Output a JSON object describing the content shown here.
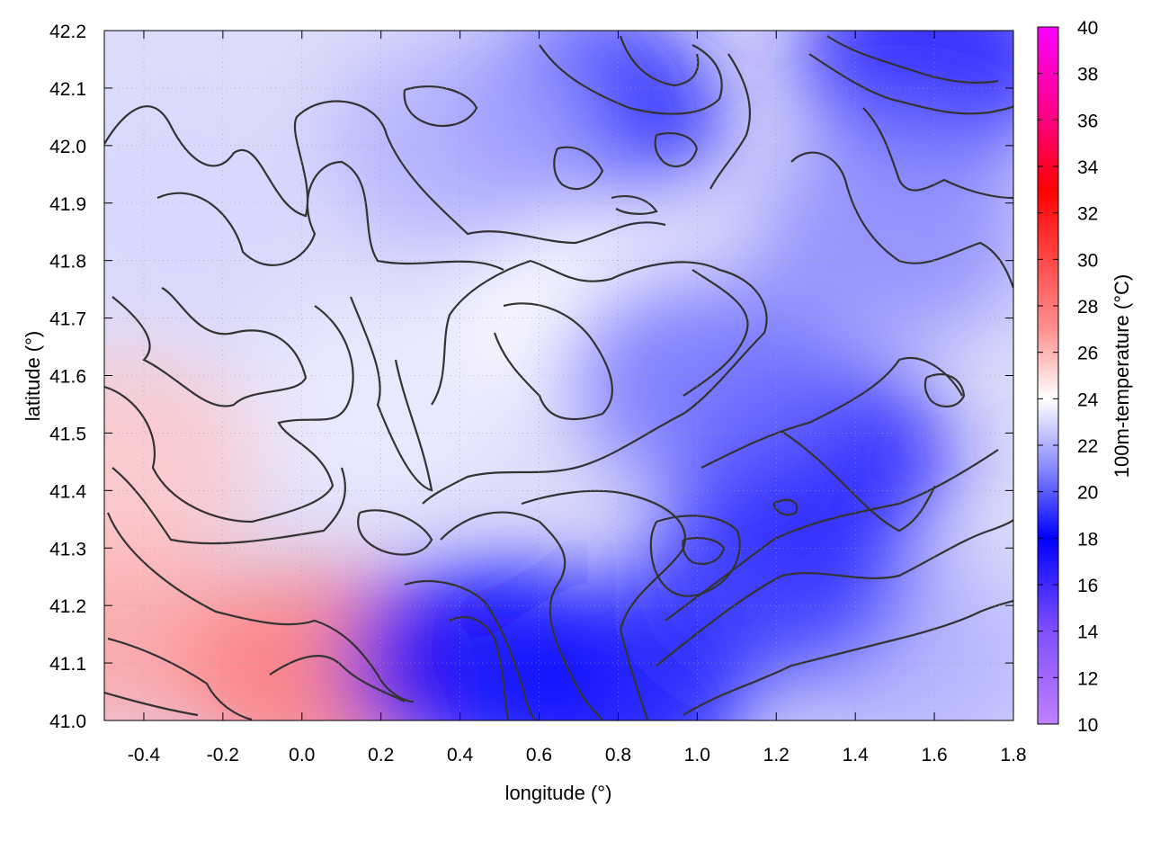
{
  "chart_data": {
    "type": "heatmap",
    "title": "",
    "xlabel": "longitude (°)",
    "ylabel": "latitude (°)",
    "colorbar_label": "100m-temperature (°C)",
    "xlim": [
      -0.5,
      1.8
    ],
    "ylim": [
      41.0,
      42.2
    ],
    "clim": [
      10,
      40
    ],
    "x_ticks": [
      "-0.4",
      "-0.2",
      "0.0",
      "0.2",
      "0.4",
      "0.6",
      "0.8",
      "1.0",
      "1.2",
      "1.4",
      "1.6",
      "1.8"
    ],
    "x_tick_values": [
      -0.4,
      -0.2,
      0.0,
      0.2,
      0.4,
      0.6,
      0.8,
      1.0,
      1.2,
      1.4,
      1.6,
      1.8
    ],
    "y_ticks": [
      "41.0",
      "41.1",
      "41.2",
      "41.3",
      "41.4",
      "41.5",
      "41.6",
      "41.7",
      "41.8",
      "41.9",
      "42.0",
      "42.1",
      "42.2"
    ],
    "y_tick_values": [
      41.0,
      41.1,
      41.2,
      41.3,
      41.4,
      41.5,
      41.6,
      41.7,
      41.8,
      41.9,
      42.0,
      42.1,
      42.2
    ],
    "colorbar_ticks": [
      "10",
      "12",
      "14",
      "16",
      "18",
      "20",
      "22",
      "24",
      "26",
      "28",
      "30",
      "32",
      "34",
      "36",
      "38",
      "40"
    ],
    "colorbar_tick_values": [
      10,
      12,
      14,
      16,
      18,
      20,
      22,
      24,
      26,
      28,
      30,
      32,
      34,
      36,
      38,
      40
    ],
    "colormap": [
      {
        "value": 10,
        "color": "#c080ff"
      },
      {
        "value": 14,
        "color": "#8050ff"
      },
      {
        "value": 18,
        "color": "#0000ff"
      },
      {
        "value": 21,
        "color": "#8888ff"
      },
      {
        "value": 24,
        "color": "#ffffff"
      },
      {
        "value": 27,
        "color": "#ff9090"
      },
      {
        "value": 33,
        "color": "#ff0000"
      },
      {
        "value": 36,
        "color": "#ff0080"
      },
      {
        "value": 40,
        "color": "#ff00ff"
      }
    ],
    "grid": true,
    "contour_color": "#333333",
    "field_samples": [
      {
        "lon": -0.45,
        "lat": 41.15,
        "value": 26.5
      },
      {
        "lon": -0.45,
        "lat": 41.45,
        "value": 25.5
      },
      {
        "lon": 0.05,
        "lat": 41.08,
        "value": 28.0
      },
      {
        "lon": -0.3,
        "lat": 41.9,
        "value": 23.0
      },
      {
        "lon": 0.2,
        "lat": 41.55,
        "value": 23.5
      },
      {
        "lon": 0.45,
        "lat": 41.1,
        "value": 18.0
      },
      {
        "lon": 0.8,
        "lat": 41.05,
        "value": 17.5
      },
      {
        "lon": 1.3,
        "lat": 41.45,
        "value": 17.0
      },
      {
        "lon": 0.72,
        "lat": 42.05,
        "value": 18.5
      },
      {
        "lon": 1.6,
        "lat": 42.15,
        "value": 17.0
      },
      {
        "lon": 0.75,
        "lat": 41.72,
        "value": 24.0
      },
      {
        "lon": 1.55,
        "lat": 41.1,
        "value": 22.0
      },
      {
        "lon": 1.0,
        "lat": 41.6,
        "value": 20.5
      },
      {
        "lon": 1.5,
        "lat": 41.85,
        "value": 21.0
      },
      {
        "lon": 0.4,
        "lat": 42.0,
        "value": 22.0
      },
      {
        "lon": 1.2,
        "lat": 41.25,
        "value": 19.0
      }
    ]
  }
}
